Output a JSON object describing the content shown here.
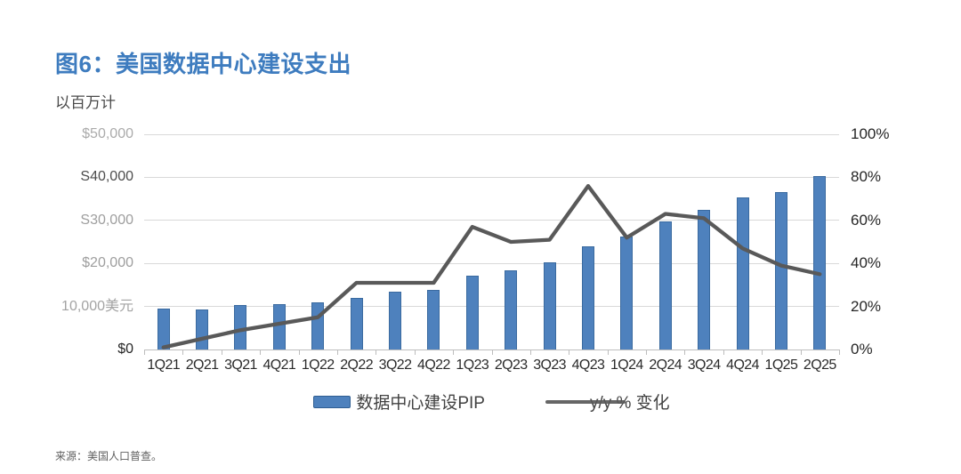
{
  "figure": {
    "title": "图6：美国数据中心建设支出",
    "subtitle": "以百万计",
    "source": "来源：美国人口普查。"
  },
  "colors": {
    "title_blue": "#3E7CBF",
    "bar_fill": "#4E81BD",
    "bar_border": "#3A6A9F",
    "line_gray": "#595959",
    "gridline": "#D9D9D9",
    "axis_line": "#BDBDBD",
    "left_tick_colors_bottom_to_top": [
      "#262626",
      "#A3A3A3",
      "#9E9E9E",
      "#9E9E9E",
      "#4D4D4D",
      "#ABABAB"
    ]
  },
  "chart_data": {
    "type": "bar",
    "subtype": "combo-bar-line",
    "title": "图6：美国数据中心建设支出",
    "unit_note": "以百万计",
    "categories": [
      "1Q21",
      "2Q21",
      "3Q21",
      "4Q21",
      "1Q22",
      "2Q22",
      "3Q22",
      "4Q22",
      "1Q23",
      "2Q23",
      "3Q23",
      "4Q23",
      "1Q24",
      "2Q24",
      "3Q24",
      "4Q24",
      "1Q25",
      "2Q25"
    ],
    "series": [
      {
        "name": "数据中心建设PIP",
        "type": "bar",
        "axis": "left",
        "values": [
          9500,
          9300,
          10300,
          10500,
          10900,
          12000,
          13500,
          13800,
          17200,
          18300,
          20300,
          23900,
          26200,
          29800,
          32400,
          35300,
          36500,
          40300
        ]
      },
      {
        "name": "y/y % 变化",
        "type": "line",
        "axis": "right",
        "values": [
          1,
          5,
          9,
          12,
          15,
          31,
          31,
          31,
          57,
          50,
          51,
          76,
          52,
          63,
          61,
          47,
          39,
          35
        ]
      }
    ],
    "left_axis": {
      "min": 0,
      "max": 50000,
      "tick_labels_bottom_to_top": [
        "$0",
        "10,000美元",
        "$20,000",
        "S30,000",
        "S40,000",
        "$50,000"
      ]
    },
    "right_axis": {
      "min": 0,
      "max": 100,
      "tick_labels_bottom_to_top": [
        "0%",
        "20%",
        "40%",
        "60%",
        "80%",
        "100%"
      ]
    },
    "grid": true,
    "legend_position": "bottom"
  }
}
